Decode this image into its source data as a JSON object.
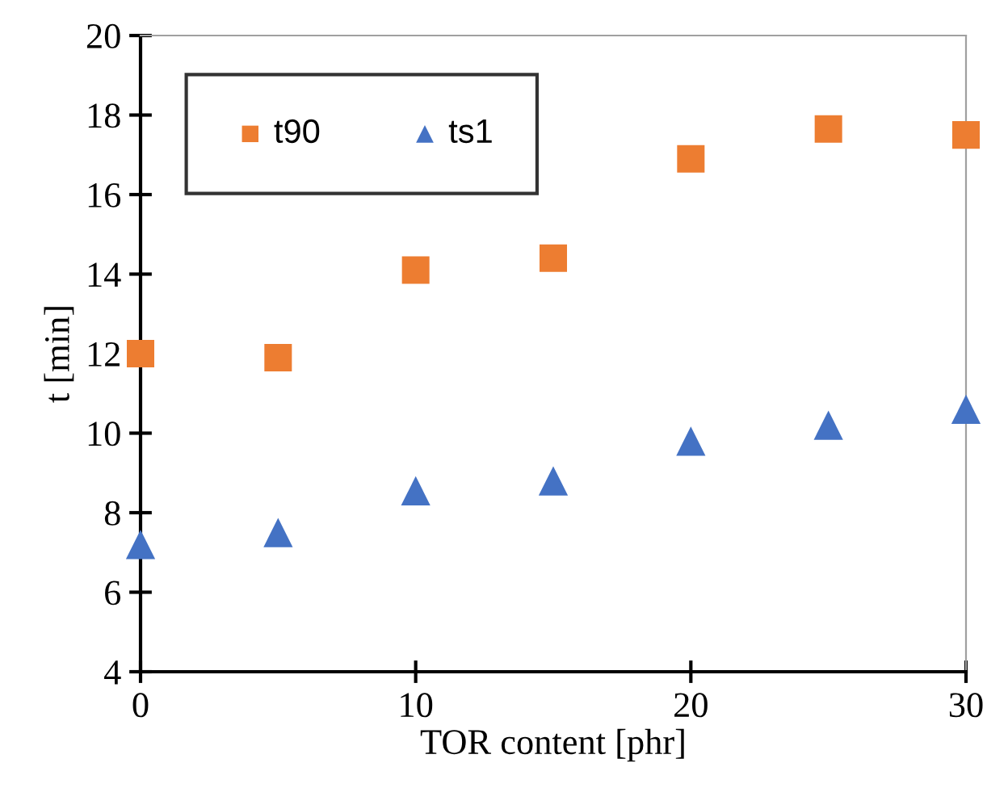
{
  "chart_data": {
    "type": "scatter",
    "xlabel": "TOR content [phr]",
    "ylabel": "t [min]",
    "x": [
      0,
      5,
      10,
      15,
      20,
      25,
      30
    ],
    "series": [
      {
        "name": "t90",
        "color": "#ed7d31",
        "marker": "square",
        "values": [
          12.0,
          11.9,
          14.1,
          14.4,
          16.9,
          17.65,
          17.5
        ]
      },
      {
        "name": "ts1",
        "color": "#4472c4",
        "marker": "triangle",
        "values": [
          7.2,
          7.5,
          8.55,
          8.8,
          9.8,
          10.2,
          10.6
        ]
      }
    ],
    "xlim": [
      0,
      30
    ],
    "xticks": [
      0,
      10,
      20,
      30
    ],
    "ylim": [
      4,
      20
    ],
    "yticks": [
      4,
      6,
      8,
      10,
      12,
      14,
      16,
      18,
      20
    ],
    "grid": false,
    "legend": "top left"
  }
}
